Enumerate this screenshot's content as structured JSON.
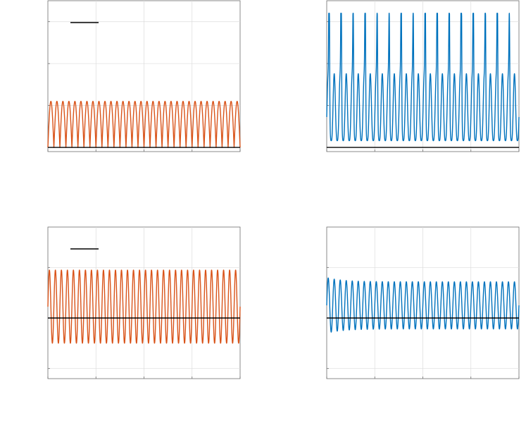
{
  "colors": {
    "orange": "#d95319",
    "blue": "#0072bd",
    "reference": "#000000",
    "grid": "#dcdcdc",
    "frame": "#6e6e6e"
  },
  "chart_data": [
    {
      "type": "line",
      "position": "top-left",
      "grid": true,
      "legend": "top-left",
      "xlim": [
        0,
        1
      ],
      "ylim": [
        -0.1,
        3.5
      ],
      "x_ticks": [
        0,
        0.25,
        0.5,
        0.75,
        1
      ],
      "y_ticks": [
        0,
        1,
        2,
        3
      ],
      "series": [
        {
          "color": "#d95319",
          "kind": "periodic",
          "cycles": 32,
          "min": 0,
          "max": 1.1,
          "shape": "rectified"
        },
        {
          "color": "#000000",
          "kind": "constant",
          "value": 0
        }
      ]
    },
    {
      "type": "line",
      "position": "top-right",
      "grid": true,
      "legend": "none",
      "xlim": [
        0,
        1
      ],
      "ylim": [
        -0.1,
        3.5
      ],
      "x_ticks": [
        0,
        0.25,
        0.5,
        0.75,
        1
      ],
      "y_ticks": [
        0,
        1,
        2,
        3
      ],
      "series": [
        {
          "color": "#0072bd",
          "kind": "periodic",
          "cycles": 32,
          "min": 0,
          "max": 3.2,
          "shape": "irregular-spikes"
        },
        {
          "color": "#000000",
          "kind": "constant",
          "value": 0
        }
      ]
    },
    {
      "type": "line",
      "position": "bottom-left",
      "grid": true,
      "legend": "top-left",
      "xlim": [
        0,
        1
      ],
      "ylim": [
        -1.2,
        1.8
      ],
      "x_ticks": [
        0,
        0.25,
        0.5,
        0.75,
        1
      ],
      "y_ticks": [
        -1,
        0,
        1
      ],
      "series": [
        {
          "color": "#d95319",
          "kind": "periodic",
          "cycles": 32,
          "min": -0.5,
          "max": 0.95,
          "shape": "sine"
        },
        {
          "color": "#000000",
          "kind": "constant",
          "value": 0
        }
      ]
    },
    {
      "type": "line",
      "position": "bottom-right",
      "grid": true,
      "legend": "none",
      "xlim": [
        0,
        1
      ],
      "ylim": [
        -1.2,
        1.8
      ],
      "x_ticks": [
        0,
        0.25,
        0.5,
        0.75,
        1
      ],
      "y_ticks": [
        -1,
        0,
        1
      ],
      "series": [
        {
          "color": "#0072bd",
          "kind": "periodic",
          "cycles": 32,
          "min": -0.3,
          "max": 0.8,
          "shape": "damped-sine"
        },
        {
          "color": "#000000",
          "kind": "constant",
          "value": 0
        }
      ]
    }
  ]
}
